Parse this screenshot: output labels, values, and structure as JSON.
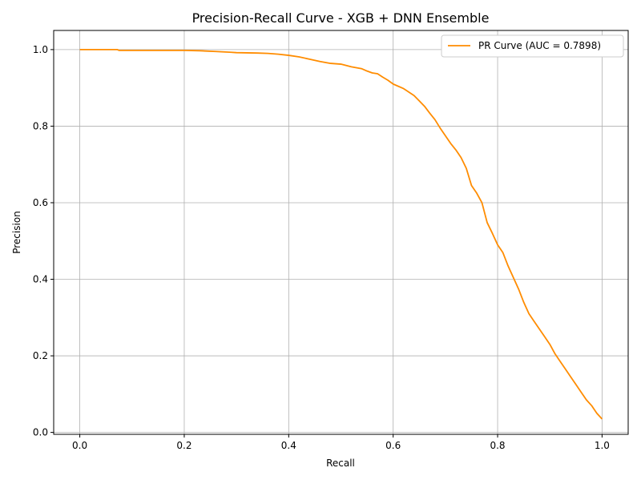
{
  "chart_data": {
    "type": "line",
    "title": "Precision-Recall Curve - XGB + DNN Ensemble",
    "xlabel": "Recall",
    "ylabel": "Precision",
    "xlim": [
      -0.05,
      1.05
    ],
    "ylim": [
      -0.005,
      1.05
    ],
    "xticks": [
      0.0,
      0.2,
      0.4,
      0.6,
      0.8,
      1.0
    ],
    "xtick_labels": [
      "0.0",
      "0.2",
      "0.4",
      "0.6",
      "0.8",
      "1.0"
    ],
    "yticks": [
      0.0,
      0.2,
      0.4,
      0.6,
      0.8,
      1.0
    ],
    "ytick_labels": [
      "0.0",
      "0.2",
      "0.4",
      "0.6",
      "0.8",
      "1.0"
    ],
    "grid": true,
    "legend_position": "upper right",
    "series": [
      {
        "name": "PR Curve (AUC = 0.7898)",
        "color": "#ff8c00",
        "x": [
          0.0,
          0.05,
          0.072,
          0.075,
          0.1,
          0.15,
          0.2,
          0.23,
          0.26,
          0.29,
          0.3,
          0.34,
          0.36,
          0.38,
          0.4,
          0.42,
          0.44,
          0.46,
          0.48,
          0.5,
          0.52,
          0.54,
          0.55,
          0.56,
          0.57,
          0.58,
          0.59,
          0.6,
          0.62,
          0.64,
          0.65,
          0.66,
          0.67,
          0.68,
          0.69,
          0.7,
          0.71,
          0.72,
          0.73,
          0.74,
          0.75,
          0.76,
          0.77,
          0.78,
          0.79,
          0.8,
          0.81,
          0.82,
          0.83,
          0.84,
          0.85,
          0.86,
          0.87,
          0.88,
          0.89,
          0.9,
          0.91,
          0.92,
          0.93,
          0.94,
          0.95,
          0.96,
          0.97,
          0.98,
          0.99,
          1.0
        ],
        "y": [
          1.0,
          1.0,
          1.0,
          0.998,
          0.998,
          0.998,
          0.998,
          0.997,
          0.995,
          0.993,
          0.992,
          0.991,
          0.99,
          0.988,
          0.985,
          0.981,
          0.975,
          0.969,
          0.964,
          0.962,
          0.955,
          0.95,
          0.944,
          0.939,
          0.937,
          0.928,
          0.92,
          0.91,
          0.898,
          0.88,
          0.866,
          0.852,
          0.834,
          0.817,
          0.795,
          0.775,
          0.755,
          0.738,
          0.718,
          0.69,
          0.645,
          0.625,
          0.6,
          0.548,
          0.52,
          0.49,
          0.47,
          0.435,
          0.405,
          0.375,
          0.34,
          0.31,
          0.29,
          0.27,
          0.25,
          0.23,
          0.205,
          0.185,
          0.165,
          0.145,
          0.125,
          0.105,
          0.085,
          0.07,
          0.05,
          0.035
        ]
      }
    ]
  }
}
